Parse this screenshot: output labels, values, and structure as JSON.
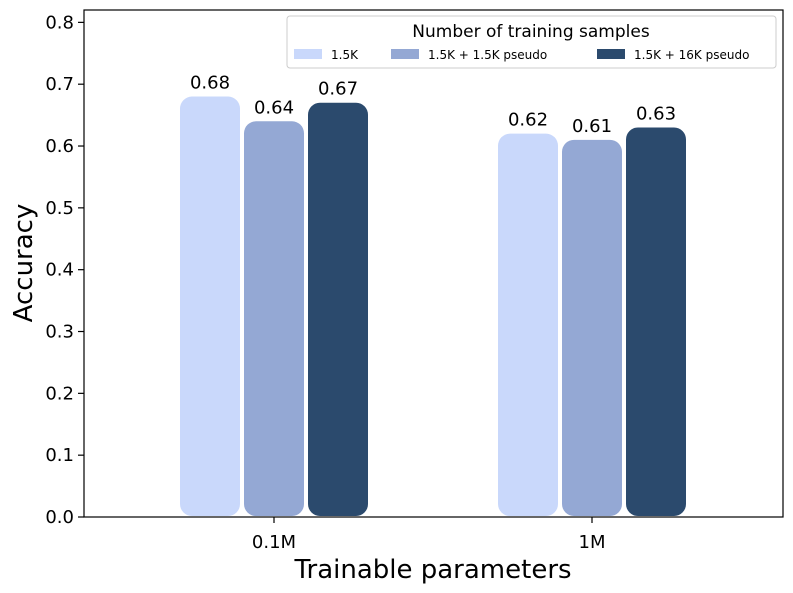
{
  "chart_data": {
    "type": "bar",
    "title": "",
    "xlabel": "Trainable parameters",
    "ylabel": "Accuracy",
    "categories": [
      "0.1M",
      "1M"
    ],
    "series": [
      {
        "name": "1.5K",
        "color": "#c9d8fb",
        "values": [
          0.68,
          0.62
        ],
        "labels": [
          "0.68",
          "0.62"
        ]
      },
      {
        "name": "1.5K + 1.5K pseudo",
        "color": "#94a8d4",
        "values": [
          0.64,
          0.61
        ],
        "labels": [
          "0.64",
          "0.61"
        ]
      },
      {
        "name": "1.5K + 16K pseudo",
        "color": "#2b4a6d",
        "values": [
          0.67,
          0.63
        ],
        "labels": [
          "0.67",
          "0.63"
        ]
      }
    ],
    "ylim": [
      0,
      0.82
    ],
    "yticks": [
      "0.0",
      "0.1",
      "0.2",
      "0.3",
      "0.4",
      "0.5",
      "0.6",
      "0.7",
      "0.8"
    ],
    "legend_title": "Number of training samples",
    "legend_location": "top-right",
    "grid": false
  }
}
